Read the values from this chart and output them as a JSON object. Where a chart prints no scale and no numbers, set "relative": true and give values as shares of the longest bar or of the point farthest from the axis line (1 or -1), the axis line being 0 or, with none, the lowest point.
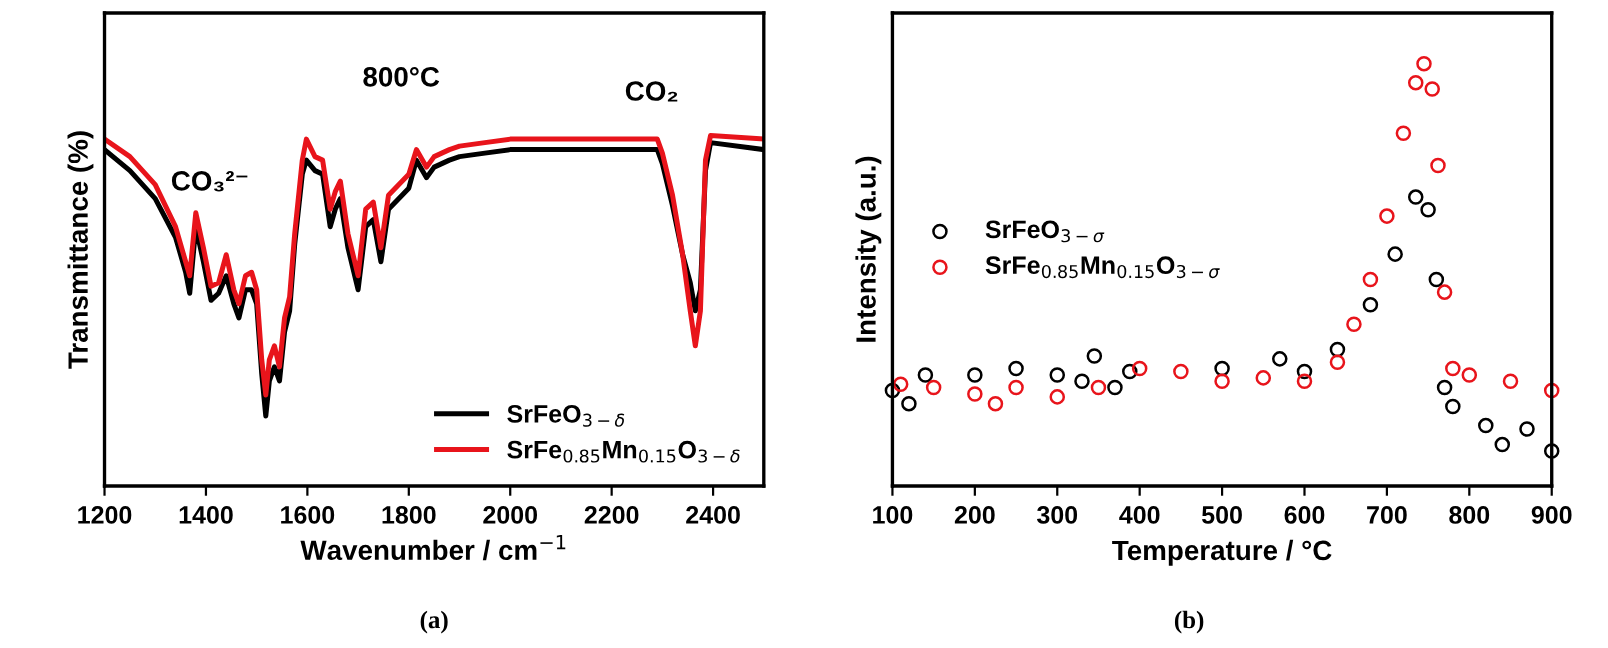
{
  "chart_data": [
    {
      "type": "line",
      "relative": true,
      "xlabel": "Wavenumber / cm$^{−1}$",
      "ylabel": "Transmittance (%)",
      "xlim": [
        1200,
        2500
      ],
      "xticks": [
        1200,
        1400,
        1600,
        1800,
        2000,
        2200,
        2400
      ],
      "tick_labels": "x",
      "legend": "bottom right",
      "grid": false,
      "marker": "none",
      "line_style": "solid",
      "x": [
        1200,
        1250,
        1300,
        1340,
        1360,
        1368,
        1380,
        1395,
        1410,
        1425,
        1440,
        1455,
        1465,
        1478,
        1490,
        1500,
        1510,
        1518,
        1525,
        1535,
        1545,
        1555,
        1565,
        1575,
        1590,
        1598,
        1615,
        1630,
        1645,
        1655,
        1665,
        1680,
        1700,
        1715,
        1730,
        1745,
        1760,
        1800,
        1815,
        1835,
        1850,
        1880,
        1900,
        1950,
        2000,
        2290,
        2300,
        2320,
        2340,
        2355,
        2365,
        2375,
        2385,
        2395,
        2500
      ],
      "series": [
        {
          "name": "SrFeO$_{3−δ}$",
          "color": "#000000",
          "values": [
            0.96,
            0.9,
            0.82,
            0.71,
            0.61,
            0.55,
            0.74,
            0.64,
            0.53,
            0.55,
            0.6,
            0.52,
            0.48,
            0.56,
            0.56,
            0.52,
            0.32,
            0.2,
            0.3,
            0.34,
            0.3,
            0.44,
            0.5,
            0.69,
            0.89,
            0.93,
            0.9,
            0.89,
            0.74,
            0.79,
            0.82,
            0.68,
            0.56,
            0.74,
            0.76,
            0.64,
            0.79,
            0.85,
            0.93,
            0.88,
            0.91,
            0.93,
            0.94,
            0.95,
            0.96,
            0.96,
            0.92,
            0.8,
            0.66,
            0.58,
            0.5,
            0.56,
            0.9,
            0.98,
            0.96
          ]
        },
        {
          "name": "SrFe$_{0.85}$Mn$_{0.15}$O$_{3−δ}$",
          "color": "#e8141b",
          "values": [
            0.99,
            0.94,
            0.86,
            0.74,
            0.64,
            0.6,
            0.78,
            0.68,
            0.57,
            0.58,
            0.66,
            0.56,
            0.52,
            0.6,
            0.61,
            0.56,
            0.36,
            0.26,
            0.36,
            0.4,
            0.34,
            0.48,
            0.54,
            0.72,
            0.93,
            0.99,
            0.94,
            0.93,
            0.79,
            0.84,
            0.87,
            0.72,
            0.6,
            0.79,
            0.81,
            0.68,
            0.83,
            0.89,
            0.96,
            0.91,
            0.94,
            0.96,
            0.97,
            0.98,
            0.99,
            0.99,
            0.95,
            0.83,
            0.66,
            0.5,
            0.4,
            0.5,
            0.93,
            1.0,
            0.99
          ]
        }
      ],
      "annotations": [
        "800°C",
        "CO₃²⁻",
        "CO₂",
        "(a)"
      ]
    },
    {
      "type": "scatter",
      "relative": true,
      "xlabel": "Temperature / °C",
      "ylabel": "Intensity (a.u.)",
      "xlim": [
        100,
        900
      ],
      "xticks": [
        100,
        200,
        300,
        400,
        500,
        600,
        700,
        800,
        900
      ],
      "tick_labels": "x",
      "legend": "center left",
      "grid": false,
      "marker": "circle",
      "series": [
        {
          "name": "SrFeO$_{3−σ}$",
          "color": "#000000",
          "x": [
            100,
            120,
            140,
            200,
            250,
            300,
            330,
            345,
            370,
            388,
            500,
            570,
            600,
            640,
            680,
            710,
            735,
            750,
            760,
            770,
            780,
            820,
            840,
            870,
            900
          ],
          "values": [
            0.226,
            0.195,
            0.263,
            0.263,
            0.278,
            0.263,
            0.248,
            0.308,
            0.233,
            0.271,
            0.278,
            0.301,
            0.271,
            0.323,
            0.429,
            0.549,
            0.684,
            0.654,
            0.489,
            0.233,
            0.188,
            0.143,
            0.098,
            0.135,
            0.083
          ]
        },
        {
          "name": "SrFe$_{0.85}$Mn$_{0.15}$O$_{3−σ}$",
          "color": "#e8141b",
          "x": [
            110,
            150,
            200,
            225,
            250,
            300,
            350,
            400,
            450,
            500,
            550,
            600,
            640,
            660,
            680,
            700,
            720,
            735,
            745,
            755,
            762,
            770,
            780,
            800,
            850,
            900
          ],
          "values": [
            0.241,
            0.233,
            0.218,
            0.195,
            0.233,
            0.211,
            0.233,
            0.278,
            0.271,
            0.248,
            0.256,
            0.248,
            0.293,
            0.383,
            0.489,
            0.639,
            0.835,
            0.955,
            1.0,
            0.94,
            0.759,
            0.459,
            0.278,
            0.263,
            0.248,
            0.226
          ]
        }
      ],
      "annotations": [
        "(b)"
      ]
    }
  ]
}
